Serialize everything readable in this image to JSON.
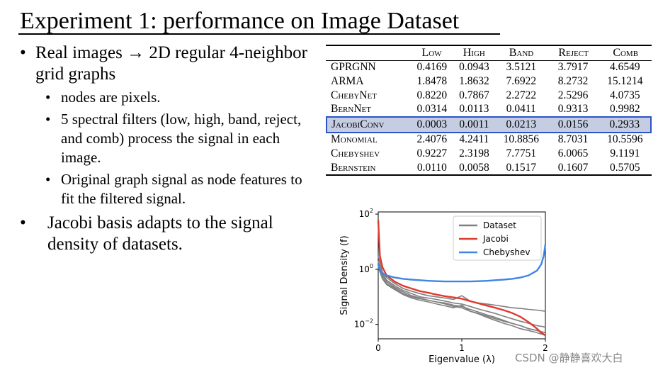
{
  "slide": {
    "title": "Experiment 1: performance on Image Dataset",
    "bullets": [
      {
        "text": "Real images → 2D regular 4-neighbor grid graphs",
        "sub": [
          "nodes are pixels.",
          "5 spectral filters (low, high, band, reject, and comb) process the signal in each image.",
          "Original graph signal as node features to fit the filtered signal."
        ]
      },
      {
        "text": "Jacobi basis adapts to the signal density of datasets."
      }
    ],
    "bullet_char": "•"
  },
  "table": {
    "columns": [
      "Low",
      "High",
      "Band",
      "Reject",
      "Comb"
    ],
    "rows": [
      {
        "name": "GPRGNN",
        "values": [
          "0.4169",
          "0.0943",
          "3.5121",
          "3.7917",
          "4.6549"
        ]
      },
      {
        "name": "ARMA",
        "values": [
          "1.8478",
          "1.8632",
          "7.6922",
          "8.2732",
          "15.1214"
        ]
      },
      {
        "name": "ChebyNet",
        "values": [
          "0.8220",
          "0.7867",
          "2.2722",
          "2.5296",
          "4.0735"
        ]
      },
      {
        "name": "BernNet",
        "values": [
          "0.0314",
          "0.0113",
          "0.0411",
          "0.9313",
          "0.9982"
        ]
      },
      {
        "name": "JacobiConv",
        "values": [
          "0.0003",
          "0.0011",
          "0.0213",
          "0.0156",
          "0.2933"
        ],
        "highlight": true
      },
      {
        "name": "Monomial",
        "values": [
          "2.4076",
          "4.2411",
          "10.8856",
          "8.7031",
          "10.5596"
        ]
      },
      {
        "name": "Chebyshev",
        "values": [
          "0.9227",
          "2.3198",
          "7.7751",
          "6.0065",
          "9.1191"
        ]
      },
      {
        "name": "Bernstein",
        "values": [
          "0.0110",
          "0.0058",
          "0.1517",
          "0.1607",
          "0.5705"
        ]
      }
    ],
    "highlight_color": "#2c54c4"
  },
  "chart_data": {
    "type": "line",
    "xlabel": "Eigenvalue (λ)",
    "ylabel": "Signal Density (f)",
    "xlim": [
      0,
      2
    ],
    "ylim": [
      0.003,
      120
    ],
    "yscale": "log",
    "xticks": [
      "0",
      "1",
      "2"
    ],
    "yticks": [
      {
        "base": "10",
        "exp": "2",
        "value": 100
      },
      {
        "base": "10",
        "exp": "0",
        "value": 1
      },
      {
        "base": "10",
        "exp": "−2",
        "value": 0.01
      }
    ],
    "legend_position": "top-right",
    "series": [
      {
        "name": "Dataset",
        "color": "#808080",
        "curves": [
          {
            "x": [
              0,
              0.05,
              0.1,
              0.2,
              0.3,
              0.4,
              0.5,
              0.6,
              0.7,
              0.8,
              0.9,
              1.0,
              1.1,
              1.2,
              1.3,
              1.4,
              1.5,
              1.6,
              1.7,
              1.8,
              1.9,
              2.0
            ],
            "y": [
              1.5,
              0.5,
              0.3,
              0.2,
              0.13,
              0.1,
              0.085,
              0.075,
              0.065,
              0.06,
              0.05,
              0.045,
              0.035,
              0.028,
              0.022,
              0.018,
              0.014,
              0.011,
              0.009,
              0.007,
              0.006,
              0.005
            ]
          },
          {
            "x": [
              0,
              0.05,
              0.1,
              0.2,
              0.3,
              0.4,
              0.5,
              0.6,
              0.7,
              0.8,
              0.9,
              1.0,
              1.1,
              1.2,
              1.3,
              1.4,
              1.5,
              1.6,
              1.7,
              1.8,
              1.9,
              2.0
            ],
            "y": [
              3,
              0.8,
              0.5,
              0.3,
              0.2,
              0.16,
              0.13,
              0.11,
              0.1,
              0.09,
              0.08,
              0.11,
              0.07,
              0.06,
              0.055,
              0.05,
              0.045,
              0.04,
              0.038,
              0.035,
              0.033,
              0.03
            ]
          },
          {
            "x": [
              0,
              0.05,
              0.1,
              0.2,
              0.3,
              0.4,
              0.5,
              0.6,
              0.7,
              0.8,
              0.9,
              1.0,
              1.1,
              1.2,
              1.3,
              1.4,
              1.5,
              1.6,
              1.7,
              1.8,
              1.9,
              2.0
            ],
            "y": [
              2,
              0.6,
              0.35,
              0.22,
              0.15,
              0.11,
              0.09,
              0.075,
              0.065,
              0.055,
              0.045,
              0.04,
              0.03,
              0.024,
              0.018,
              0.014,
              0.011,
              0.009,
              0.007,
              0.006,
              0.005,
              0.004
            ]
          },
          {
            "x": [
              0,
              0.05,
              0.1,
              0.2,
              0.3,
              0.4,
              0.5,
              0.6,
              0.7,
              0.8,
              0.9,
              1.0,
              1.1,
              1.2,
              1.3,
              1.4,
              1.5,
              1.6,
              1.7,
              1.8,
              1.9,
              2.0
            ],
            "y": [
              1.8,
              0.7,
              0.4,
              0.25,
              0.17,
              0.13,
              0.1,
              0.09,
              0.08,
              0.07,
              0.06,
              0.055,
              0.045,
              0.036,
              0.03,
              0.025,
              0.02,
              0.016,
              0.013,
              0.011,
              0.009,
              0.008
            ]
          },
          {
            "x": [
              0,
              0.05,
              0.1,
              0.2,
              0.3,
              0.4,
              0.5,
              0.6,
              0.7,
              0.8,
              0.9,
              1.0,
              1.1,
              1.2,
              1.3,
              1.4,
              1.5,
              1.6,
              1.7,
              1.8,
              1.9,
              2.0
            ],
            "y": [
              1.2,
              0.45,
              0.28,
              0.18,
              0.12,
              0.09,
              0.075,
              0.065,
              0.055,
              0.047,
              0.04,
              0.05,
              0.03,
              0.025,
              0.02,
              0.016,
              0.013,
              0.011,
              0.009,
              0.007,
              0.006,
              0.005
            ]
          }
        ]
      },
      {
        "name": "Jacobi",
        "color": "#e03a2f",
        "x": [
          0,
          0.02,
          0.05,
          0.1,
          0.2,
          0.3,
          0.4,
          0.5,
          0.6,
          0.7,
          0.8,
          0.9,
          1.0,
          1.1,
          1.2,
          1.3,
          1.4,
          1.5,
          1.6,
          1.7,
          1.8,
          1.9,
          1.95,
          2.0
        ],
        "y": [
          60,
          3,
          1.2,
          0.6,
          0.35,
          0.25,
          0.2,
          0.16,
          0.14,
          0.12,
          0.105,
          0.095,
          0.085,
          0.07,
          0.058,
          0.048,
          0.04,
          0.033,
          0.026,
          0.019,
          0.012,
          0.007,
          0.005,
          0.004
        ]
      },
      {
        "name": "Chebyshev",
        "color": "#3d85e6",
        "x": [
          0,
          0.02,
          0.05,
          0.1,
          0.2,
          0.3,
          0.4,
          0.5,
          0.6,
          0.7,
          0.8,
          0.9,
          1.0,
          1.1,
          1.2,
          1.3,
          1.4,
          1.5,
          1.6,
          1.7,
          1.8,
          1.9,
          1.95,
          1.98,
          2.0
        ],
        "y": [
          1.5,
          0.9,
          0.7,
          0.6,
          0.5,
          0.45,
          0.42,
          0.4,
          0.38,
          0.37,
          0.36,
          0.36,
          0.36,
          0.36,
          0.37,
          0.38,
          0.4,
          0.42,
          0.45,
          0.5,
          0.6,
          0.9,
          1.5,
          3,
          8
        ]
      }
    ]
  },
  "watermark": "CSDN @静静喜欢大白"
}
